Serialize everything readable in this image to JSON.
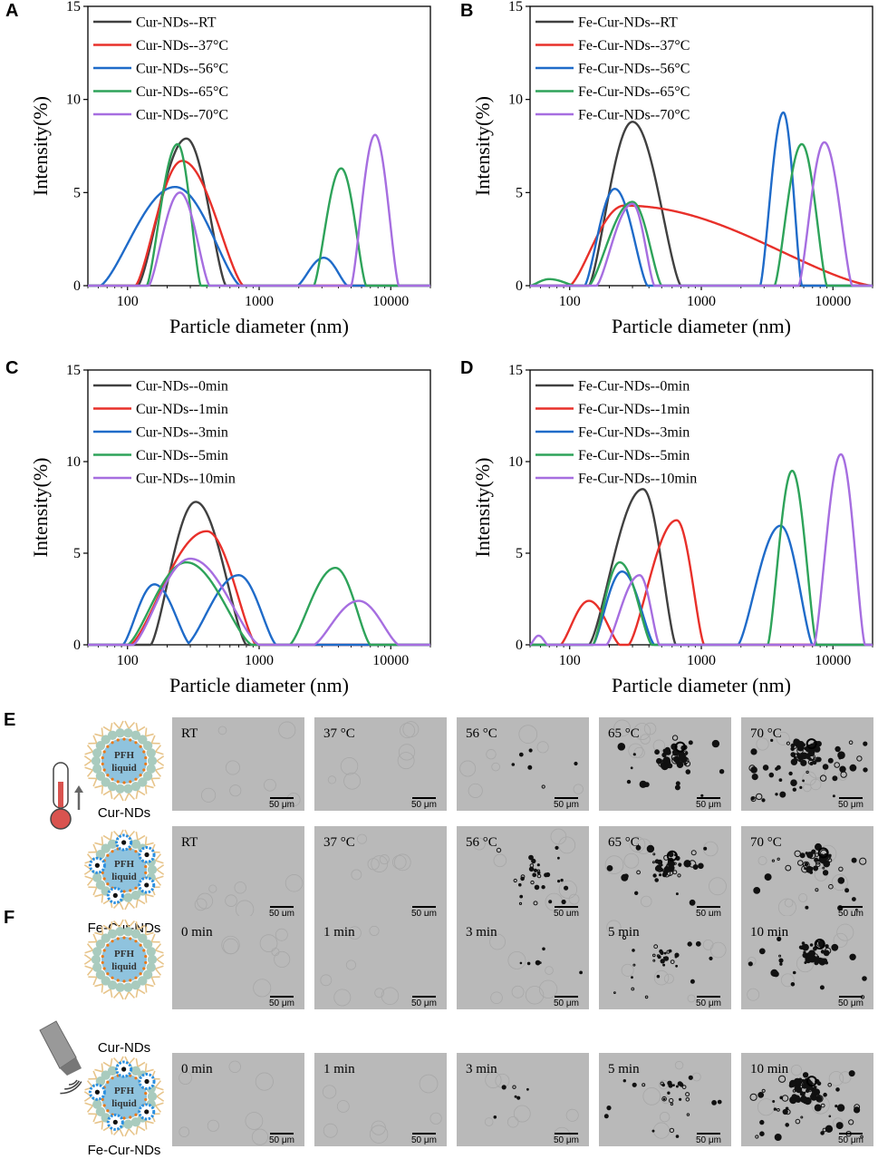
{
  "colors": {
    "series": [
      "#404040",
      "#e8302a",
      "#1f6bc9",
      "#2ea35a",
      "#a66ee0"
    ],
    "micro_bg": "#b9b9b9",
    "shell": "#a9cbbe",
    "core": "#8fc3de",
    "chain": "#e7c48a",
    "dot": "#e87a1a",
    "fe_ring": "#2a8fe0",
    "thermo": "#d9534f"
  },
  "panel_labels": [
    "A",
    "B",
    "C",
    "D",
    "E",
    "F"
  ],
  "chart_data": [
    {
      "id": "A",
      "type": "line",
      "xscale": "log",
      "xlim": [
        50,
        20000
      ],
      "ylim": [
        0,
        15
      ],
      "xticks": [
        "100",
        "1000",
        "10000"
      ],
      "yticks": [
        "0",
        "5",
        "10",
        "15"
      ],
      "xlabel": "Particle diameter (nm)",
      "ylabel": "Intensity(%)",
      "series": [
        {
          "name": "Cur-NDs--RT",
          "peaks": [
            {
              "c": 280,
              "h": 7.9,
              "lo": 120,
              "hi": 560
            }
          ]
        },
        {
          "name": "Cur-NDs--37°C",
          "peaks": [
            {
              "c": 260,
              "h": 6.7,
              "lo": 115,
              "hi": 760
            }
          ]
        },
        {
          "name": "Cur-NDs--56°C",
          "peaks": [
            {
              "c": 230,
              "h": 5.3,
              "lo": 62,
              "hi": 720
            },
            {
              "c": 3100,
              "h": 1.5,
              "lo": 1950,
              "hi": 4700
            }
          ]
        },
        {
          "name": "Cur-NDs--65°C",
          "peaks": [
            {
              "c": 240,
              "h": 7.6,
              "lo": 140,
              "hi": 360
            },
            {
              "c": 4200,
              "h": 6.3,
              "lo": 2600,
              "hi": 6500
            }
          ]
        },
        {
          "name": "Cur-NDs--70°C",
          "peaks": [
            {
              "c": 250,
              "h": 5.0,
              "lo": 145,
              "hi": 420
            },
            {
              "c": 7600,
              "h": 8.1,
              "lo": 5000,
              "hi": 11500
            }
          ]
        }
      ]
    },
    {
      "id": "B",
      "type": "line",
      "xscale": "log",
      "xlim": [
        50,
        20000
      ],
      "ylim": [
        0,
        15
      ],
      "xticks": [
        "100",
        "1000",
        "10000"
      ],
      "yticks": [
        "0",
        "5",
        "10",
        "15"
      ],
      "xlabel": "Particle diameter (nm)",
      "ylabel": "Intensity(%)",
      "series": [
        {
          "name": "Fe-Cur-NDs--RT",
          "peaks": [
            {
              "c": 300,
              "h": 8.8,
              "lo": 140,
              "hi": 700
            }
          ]
        },
        {
          "name": "Fe-Cur-NDs--37°C",
          "peaks": [
            {
              "c": 260,
              "h": 4.3,
              "lo": 100,
              "hi": 20000
            }
          ]
        },
        {
          "name": "Fe-Cur-NDs--56°C",
          "peaks": [
            {
              "c": 220,
              "h": 5.2,
              "lo": 130,
              "hi": 390
            },
            {
              "c": 4200,
              "h": 9.3,
              "lo": 2800,
              "hi": 5800
            }
          ]
        },
        {
          "name": "Fe-Cur-NDs--65°C",
          "peaks": [
            {
              "c": 70,
              "h": 0.35,
              "lo": 50,
              "hi": 110
            },
            {
              "c": 300,
              "h": 4.5,
              "lo": 140,
              "hi": 500
            },
            {
              "c": 5800,
              "h": 7.6,
              "lo": 3600,
              "hi": 9000
            }
          ]
        },
        {
          "name": "Fe-Cur-NDs--70°C",
          "peaks": [
            {
              "c": 300,
              "h": 4.4,
              "lo": 160,
              "hi": 440
            },
            {
              "c": 8600,
              "h": 7.7,
              "lo": 5500,
              "hi": 14000
            }
          ]
        }
      ]
    },
    {
      "id": "C",
      "type": "line",
      "xscale": "log",
      "xlim": [
        50,
        20000
      ],
      "ylim": [
        0,
        15
      ],
      "xticks": [
        "100",
        "1000",
        "10000"
      ],
      "yticks": [
        "0",
        "5",
        "10",
        "15"
      ],
      "xlabel": "Particle diameter (nm)",
      "ylabel": "Intensity(%)",
      "series": [
        {
          "name": "Cur-NDs--0min",
          "peaks": [
            {
              "c": 330,
              "h": 7.8,
              "lo": 150,
              "hi": 800
            }
          ]
        },
        {
          "name": "Cur-NDs--1min",
          "peaks": [
            {
              "c": 400,
              "h": 6.2,
              "lo": 105,
              "hi": 950
            }
          ]
        },
        {
          "name": "Cur-NDs--3min",
          "peaks": [
            {
              "c": 160,
              "h": 3.3,
              "lo": 92,
              "hi": 300
            },
            {
              "c": 700,
              "h": 3.8,
              "lo": 280,
              "hi": 1350
            }
          ]
        },
        {
          "name": "Cur-NDs--5min",
          "peaks": [
            {
              "c": 280,
              "h": 4.5,
              "lo": 100,
              "hi": 880
            },
            {
              "c": 3800,
              "h": 4.2,
              "lo": 1700,
              "hi": 7000
            }
          ]
        },
        {
          "name": "Cur-NDs--10min",
          "peaks": [
            {
              "c": 300,
              "h": 4.7,
              "lo": 110,
              "hi": 1000
            },
            {
              "c": 5700,
              "h": 2.4,
              "lo": 2600,
              "hi": 11500
            }
          ]
        }
      ]
    },
    {
      "id": "D",
      "type": "line",
      "xscale": "log",
      "xlim": [
        50,
        20000
      ],
      "ylim": [
        0,
        15
      ],
      "xticks": [
        "100",
        "1000",
        "10000"
      ],
      "yticks": [
        "0",
        "5",
        "10",
        "15"
      ],
      "xlabel": "Particle diameter (nm)",
      "ylabel": "Intensity(%)",
      "series": [
        {
          "name": "Fe-Cur-NDs--0min",
          "peaks": [
            {
              "c": 360,
              "h": 8.5,
              "lo": 140,
              "hi": 640
            }
          ]
        },
        {
          "name": "Fe-Cur-NDs--1min",
          "peaks": [
            {
              "c": 140,
              "h": 2.4,
              "lo": 85,
              "hi": 240
            },
            {
              "c": 650,
              "h": 6.8,
              "lo": 280,
              "hi": 1050
            }
          ]
        },
        {
          "name": "Fe-Cur-NDs--3min",
          "peaks": [
            {
              "c": 250,
              "h": 4.0,
              "lo": 150,
              "hi": 440
            },
            {
              "c": 4000,
              "h": 6.5,
              "lo": 1900,
              "hi": 7000
            }
          ]
        },
        {
          "name": "Fe-Cur-NDs--5min",
          "peaks": [
            {
              "c": 240,
              "h": 4.5,
              "lo": 150,
              "hi": 420
            },
            {
              "c": 4900,
              "h": 9.5,
              "lo": 3200,
              "hi": 7500
            }
          ]
        },
        {
          "name": "Fe-Cur-NDs--10min",
          "peaks": [
            {
              "c": 58,
              "h": 0.5,
              "lo": 50,
              "hi": 68
            },
            {
              "c": 340,
              "h": 3.8,
              "lo": 190,
              "hi": 480
            },
            {
              "c": 11500,
              "h": 10.4,
              "lo": 7200,
              "hi": 17500
            }
          ]
        }
      ]
    }
  ],
  "micrographs": {
    "E": {
      "row_labels": [
        "Cur-NDs",
        "Fe-Cur-NDs"
      ],
      "pfh_text": [
        "PFH",
        "liquid"
      ],
      "rows": [
        {
          "nd": "Cur-NDs",
          "images": [
            {
              "label": "RT",
              "scale": "50 μm",
              "density": 0
            },
            {
              "label": "37 °C",
              "scale": "50 μm",
              "density": 0
            },
            {
              "label": "56 °C",
              "scale": "50 μm",
              "density": 1
            },
            {
              "label": "65 °C",
              "scale": "50 μm",
              "density": 3
            },
            {
              "label": "70 °C",
              "scale": "50 μm",
              "density": 4
            }
          ]
        },
        {
          "nd": "Fe-Cur-NDs",
          "images": [
            {
              "label": "RT",
              "scale": "50 μm",
              "density": 0
            },
            {
              "label": "37 °C",
              "scale": "50 μm",
              "density": 0
            },
            {
              "label": "56 °C",
              "scale": "50 μm",
              "density": 2
            },
            {
              "label": "65 °C",
              "scale": "50 μm",
              "density": 3
            },
            {
              "label": "70 °C",
              "scale": "50 μm",
              "density": 3
            }
          ]
        }
      ]
    },
    "F": {
      "row_labels": [
        "Cur-NDs",
        "Fe-Cur-NDs"
      ],
      "pfh_text": [
        "PFH",
        "liquid"
      ],
      "rows": [
        {
          "nd": "Cur-NDs",
          "images": [
            {
              "label": "0 min",
              "scale": "50 μm",
              "density": 0
            },
            {
              "label": "1 min",
              "scale": "50 μm",
              "density": 0
            },
            {
              "label": "3 min",
              "scale": "50 μm",
              "density": 1
            },
            {
              "label": "5 min",
              "scale": "50 μm",
              "density": 2
            },
            {
              "label": "10 min",
              "scale": "50 μm",
              "density": 3
            }
          ]
        },
        {
          "nd": "Fe-Cur-NDs",
          "images": [
            {
              "label": "0 min",
              "scale": "50 μm",
              "density": 0
            },
            {
              "label": "1 min",
              "scale": "50 μm",
              "density": 0
            },
            {
              "label": "3 min",
              "scale": "50 μm",
              "density": 1
            },
            {
              "label": "5 min",
              "scale": "50 μm",
              "density": 2
            },
            {
              "label": "10 min",
              "scale": "50 μm",
              "density": 4
            }
          ]
        }
      ]
    }
  }
}
